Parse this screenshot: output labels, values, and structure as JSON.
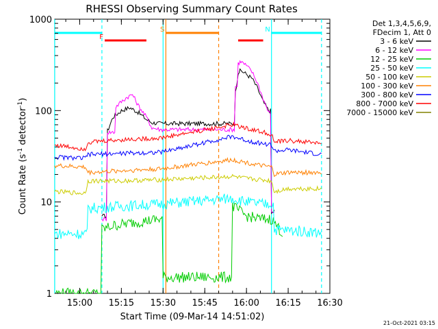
{
  "chart_data": {
    "type": "line",
    "title": "RHESSI Observing Summary Count Rates",
    "xlabel": "Start Time (09-Mar-14 14:51:02)",
    "ylabel_main": "Count Rate (s",
    "ylabel_sup1": "-1",
    "ylabel_mid": " detector",
    "ylabel_sup2": "-1",
    "ylabel_end": ")",
    "xscale": "time",
    "yscale": "log",
    "xlim": [
      "14:51:02",
      "16:30:00"
    ],
    "ylim": [
      1,
      1000
    ],
    "xticks": [
      {
        "t": "15:00",
        "label": "15:00"
      },
      {
        "t": "15:15",
        "label": "15:15"
      },
      {
        "t": "15:30",
        "label": "15:30"
      },
      {
        "t": "15:45",
        "label": "15:45"
      },
      {
        "t": "16:00",
        "label": "16:00"
      },
      {
        "t": "16:15",
        "label": "16:15"
      },
      {
        "t": "16:30",
        "label": "16:30"
      }
    ],
    "yticks": [
      {
        "v": 1,
        "label": "1"
      },
      {
        "v": 10,
        "label": "10"
      },
      {
        "v": 100,
        "label": "100"
      },
      {
        "v": 1000,
        "label": "1000"
      }
    ],
    "legend": {
      "header": [
        "Det 1,3,4,5,6,9,",
        "FDecim 1, Att 0"
      ],
      "placement": "right"
    },
    "series": [
      {
        "name": "3 - 6 keV",
        "color": "#000000",
        "points": [
          [
            "15:08",
            7.0
          ],
          [
            "15:10",
            60
          ],
          [
            "15:12",
            85
          ],
          [
            "15:15",
            100
          ],
          [
            "15:18",
            108
          ],
          [
            "15:21",
            96
          ],
          [
            "15:24",
            80
          ],
          [
            "15:26",
            74
          ],
          [
            "15:29",
            72
          ],
          [
            "15:56",
            155
          ],
          [
            "15:57",
            260
          ],
          [
            "15:58",
            275
          ],
          [
            "16:00",
            250
          ],
          [
            "16:02",
            225
          ],
          [
            "16:04",
            175
          ],
          [
            "16:06",
            125
          ],
          [
            "16:08",
            100
          ],
          [
            "16:09",
            7.5
          ],
          [
            "16:10",
            8.0
          ]
        ]
      },
      {
        "name": "6 - 12 keV",
        "color": "#ff00ff",
        "points": [
          [
            "15:08",
            6.5
          ],
          [
            "15:10",
            58
          ],
          [
            "15:13",
            110
          ],
          [
            "15:15",
            125
          ],
          [
            "15:17",
            140
          ],
          [
            "15:19",
            150
          ],
          [
            "15:21",
            115
          ],
          [
            "15:24",
            85
          ],
          [
            "15:26",
            65
          ],
          [
            "15:29",
            62
          ],
          [
            "15:56",
            185
          ],
          [
            "15:57",
            330
          ],
          [
            "15:58",
            345
          ],
          [
            "16:00",
            310
          ],
          [
            "16:02",
            265
          ],
          [
            "16:04",
            200
          ],
          [
            "16:06",
            135
          ],
          [
            "16:08",
            95
          ],
          [
            "16:09",
            7.5
          ],
          [
            "16:10",
            8.0
          ]
        ]
      },
      {
        "name": "12 - 25 keV",
        "color": "#00cc00",
        "points": [
          [
            "14:51",
            1.0
          ],
          [
            "15:08",
            5.0
          ],
          [
            "15:12",
            5.5
          ],
          [
            "15:20",
            6.0
          ],
          [
            "15:29",
            6.5
          ],
          [
            "15:30",
            1.5
          ],
          [
            "15:55",
            9.0
          ],
          [
            "16:00",
            7.0
          ],
          [
            "16:05",
            6.5
          ],
          [
            "16:09",
            6.5
          ],
          [
            "16:10",
            6.0
          ],
          [
            "16:13",
            4.5
          ]
        ]
      },
      {
        "name": "25 - 50 keV",
        "color": "#00ffff",
        "points": [
          [
            "14:51",
            4.5
          ],
          [
            "15:00",
            4.5
          ],
          [
            "15:02",
            4.5
          ],
          [
            "15:03",
            8.5
          ],
          [
            "15:10",
            8.8
          ],
          [
            "15:20",
            9.2
          ],
          [
            "15:29",
            9.5
          ],
          [
            "15:55",
            11
          ],
          [
            "16:00",
            10
          ],
          [
            "16:05",
            9.5
          ],
          [
            "16:09",
            9.5
          ],
          [
            "16:10",
            5.0
          ],
          [
            "16:20",
            4.8
          ],
          [
            "16:27",
            4.6
          ]
        ]
      },
      {
        "name": "50 - 100 keV",
        "color": "#cccc00",
        "points": [
          [
            "14:51",
            13
          ],
          [
            "15:00",
            12.5
          ],
          [
            "15:02",
            12.5
          ],
          [
            "15:03",
            17
          ],
          [
            "15:15",
            17
          ],
          [
            "15:29",
            17.5
          ],
          [
            "15:55",
            19
          ],
          [
            "16:00",
            18
          ],
          [
            "16:05",
            17.5
          ],
          [
            "16:09",
            17
          ],
          [
            "16:10",
            13
          ],
          [
            "16:15",
            14
          ],
          [
            "16:27",
            14
          ]
        ]
      },
      {
        "name": "100 - 300 keV",
        "color": "#ff8000",
        "points": [
          [
            "14:51",
            25
          ],
          [
            "15:02",
            24
          ],
          [
            "15:03",
            21
          ],
          [
            "15:15",
            22
          ],
          [
            "15:29",
            23
          ],
          [
            "15:55",
            29
          ],
          [
            "16:00",
            27
          ],
          [
            "16:05",
            25
          ],
          [
            "16:09",
            24
          ],
          [
            "16:10",
            20
          ],
          [
            "16:15",
            21
          ],
          [
            "16:27",
            21
          ]
        ]
      },
      {
        "name": "300 - 800 keV",
        "color": "#0000ff",
        "points": [
          [
            "14:51",
            31
          ],
          [
            "15:02",
            30
          ],
          [
            "15:03",
            33
          ],
          [
            "15:15",
            34
          ],
          [
            "15:29",
            35
          ],
          [
            "15:55",
            52
          ],
          [
            "16:00",
            47
          ],
          [
            "16:05",
            44
          ],
          [
            "16:09",
            42
          ],
          [
            "16:10",
            36
          ],
          [
            "16:15",
            37
          ],
          [
            "16:27",
            33
          ]
        ]
      },
      {
        "name": "800 - 7000 keV",
        "color": "#ff0000",
        "points": [
          [
            "14:51",
            42
          ],
          [
            "15:02",
            38
          ],
          [
            "15:03",
            45
          ],
          [
            "15:15",
            48
          ],
          [
            "15:29",
            50
          ],
          [
            "15:55",
            70
          ],
          [
            "16:00",
            64
          ],
          [
            "16:05",
            59
          ],
          [
            "16:09",
            55
          ],
          [
            "16:10",
            45
          ],
          [
            "16:15",
            47
          ],
          [
            "16:27",
            44
          ]
        ]
      },
      {
        "name": "7000 - 15000 keV",
        "color": "#808000",
        "points": []
      }
    ],
    "flags": [
      {
        "label": "",
        "color": "#00ffff",
        "from": "14:51",
        "to": "15:08",
        "level": "top"
      },
      {
        "label": "N",
        "color": "#00ffff",
        "from": "16:09",
        "to": "16:27",
        "level": "top"
      },
      {
        "label": "F",
        "color": "#ff0000",
        "from": "15:09",
        "to": "15:24",
        "level": "second"
      },
      {
        "label": "",
        "color": "#ff0000",
        "from": "15:57",
        "to": "16:06",
        "level": "second"
      },
      {
        "label": "S",
        "color": "#ff8000",
        "from": "15:31",
        "to": "15:50",
        "level": "top"
      }
    ],
    "vlines": [
      {
        "t": "14:51",
        "color": "#00ffff",
        "style": "solid"
      },
      {
        "t": "15:08",
        "color": "#00ffff",
        "style": "dashed"
      },
      {
        "t": "15:30",
        "color": "#00ffff",
        "style": "solid"
      },
      {
        "t": "15:31",
        "color": "#ff8000",
        "style": "solid"
      },
      {
        "t": "15:50",
        "color": "#ff8000",
        "style": "dashed"
      },
      {
        "t": "16:09",
        "color": "#00ffff",
        "style": "solid"
      },
      {
        "t": "16:27",
        "color": "#00ffff",
        "style": "dashed"
      }
    ]
  },
  "footer": {
    "timestamp": "21-Oct-2021 03:15"
  }
}
